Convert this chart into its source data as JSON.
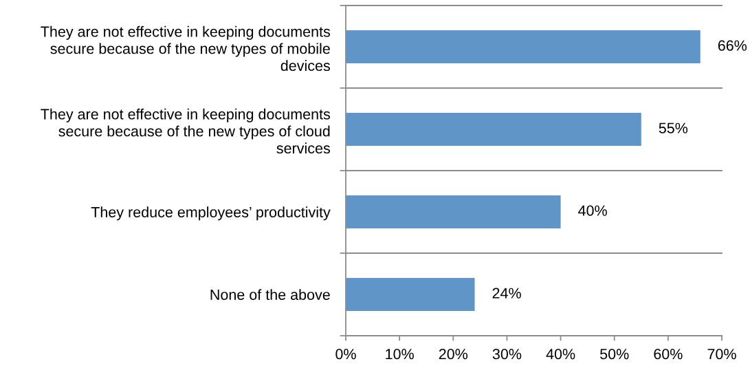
{
  "chart_data": {
    "type": "bar",
    "orientation": "horizontal",
    "categories": [
      "They are not effective in keeping documents secure because of the new types of mobile devices",
      "They are not effective in keeping documents secure because of the new types of cloud services",
      "They reduce employees’ productivity",
      "None of the above"
    ],
    "values": [
      66,
      55,
      40,
      24
    ],
    "color": "#6095c8",
    "value_labels": [
      "66%",
      "55%",
      "40%",
      "24%"
    ],
    "xlim": [
      0,
      70
    ],
    "xticks": [
      {
        "value": 0,
        "label": "0%"
      },
      {
        "value": 10,
        "label": "10%"
      },
      {
        "value": 20,
        "label": "20%"
      },
      {
        "value": 30,
        "label": "30%"
      },
      {
        "value": 40,
        "label": "40%"
      },
      {
        "value": 50,
        "label": "50%"
      },
      {
        "value": 60,
        "label": "60%"
      },
      {
        "value": 70,
        "label": "70%"
      }
    ],
    "grid": "y"
  }
}
